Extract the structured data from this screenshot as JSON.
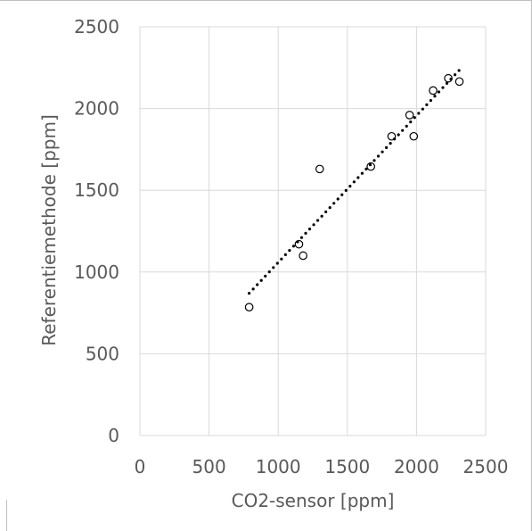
{
  "chart_data": {
    "type": "scatter",
    "xlabel": "CO2-sensor [ppm]",
    "ylabel": "Referentiemethode [ppm]",
    "xlim": [
      0,
      2500
    ],
    "ylim": [
      0,
      2500
    ],
    "x_ticks": [
      "0",
      "500",
      "1000",
      "1500",
      "2000",
      "2500"
    ],
    "y_ticks": [
      "0",
      "500",
      "1000",
      "1500",
      "2000",
      "2500"
    ],
    "grid": true,
    "legend": "none",
    "series": [
      {
        "marker": "open-circle",
        "color": "#000000",
        "points": [
          {
            "x": 790,
            "y": 785
          },
          {
            "x": 1150,
            "y": 1170
          },
          {
            "x": 1180,
            "y": 1100
          },
          {
            "x": 1300,
            "y": 1630
          },
          {
            "x": 1670,
            "y": 1645
          },
          {
            "x": 1820,
            "y": 1830
          },
          {
            "x": 1950,
            "y": 1960
          },
          {
            "x": 1980,
            "y": 1830
          },
          {
            "x": 2120,
            "y": 2110
          },
          {
            "x": 2230,
            "y": 2185
          },
          {
            "x": 2310,
            "y": 2165
          }
        ]
      }
    ],
    "trendline": {
      "style": "dotted",
      "color": "#000000",
      "start": {
        "x": 790,
        "y": 870
      },
      "end": {
        "x": 2310,
        "y": 2235
      }
    },
    "colors": {
      "gridline": "#d9d9d9",
      "text": "#595959",
      "frame": "#bfbfbf"
    }
  }
}
